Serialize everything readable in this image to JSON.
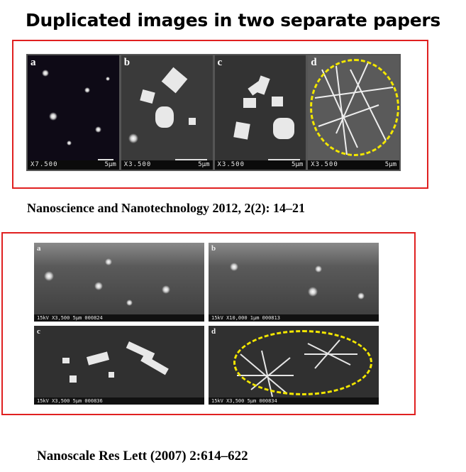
{
  "title": "Duplicated images in two separate papers",
  "paper1": {
    "citation": "Nanoscience and Nanotechnology 2012, 2(2): 14–21",
    "panels": [
      {
        "letter": "a",
        "magnification": "X7.500",
        "scale": "5μm"
      },
      {
        "letter": "b",
        "magnification": "X3.500",
        "scale": "5μm"
      },
      {
        "letter": "c",
        "magnification": "X3.500",
        "scale": "5μm"
      },
      {
        "letter": "d",
        "magnification": "X3.500",
        "scale": "5μm"
      }
    ]
  },
  "paper2": {
    "citation": "Nanoscale Res Lett (2007) 2:614–622",
    "panels": [
      {
        "letter": "a",
        "info": "15kV  X3,500  5μm  000824"
      },
      {
        "letter": "b",
        "info": "15kV  X10,000  1μm  000813"
      },
      {
        "letter": "c",
        "info": "15kV  X3,500  5μm  000836"
      },
      {
        "letter": "d",
        "info": "15kV  X3,500  5μm  000834"
      }
    ]
  },
  "colors": {
    "frame": "#e02020",
    "highlight_oval": "#f2e600"
  }
}
